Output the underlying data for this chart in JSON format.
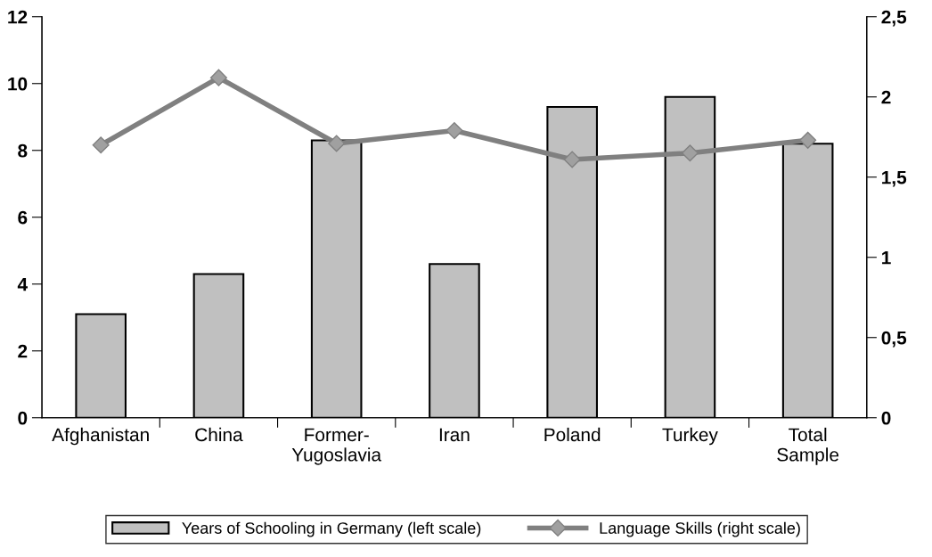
{
  "chart_data": {
    "type": "bar",
    "categories": [
      "Afghanistan",
      "China",
      "Former-\nYugoslavia",
      "Iran",
      "Poland",
      "Turkey",
      "Total\nSample"
    ],
    "series": [
      {
        "name": "Years of Schooling in Germany (left scale)",
        "color": "#c0c0c0",
        "values": [
          3.1,
          4.3,
          8.3,
          4.6,
          9.3,
          9.6,
          8.2
        ]
      },
      {
        "name": "Language Skills (right scale)",
        "type": "line",
        "axis": "y2",
        "color": "#808080",
        "values": [
          1.7,
          2.12,
          1.71,
          1.79,
          1.61,
          1.65,
          1.73
        ]
      }
    ],
    "ylim": [
      0,
      12
    ],
    "yticks": [
      0,
      2,
      4,
      6,
      8,
      10,
      12
    ],
    "y2lim": [
      0,
      2.5
    ],
    "y2ticks": [
      0,
      {
        "value": 0.5,
        "label": "0,5"
      },
      1,
      {
        "value": 1.5,
        "label": "1,5"
      },
      2,
      {
        "value": 2.5,
        "label": "2,5"
      }
    ],
    "marker": "diamond",
    "line_style": "solid",
    "grid": false,
    "legend": "bottom"
  }
}
